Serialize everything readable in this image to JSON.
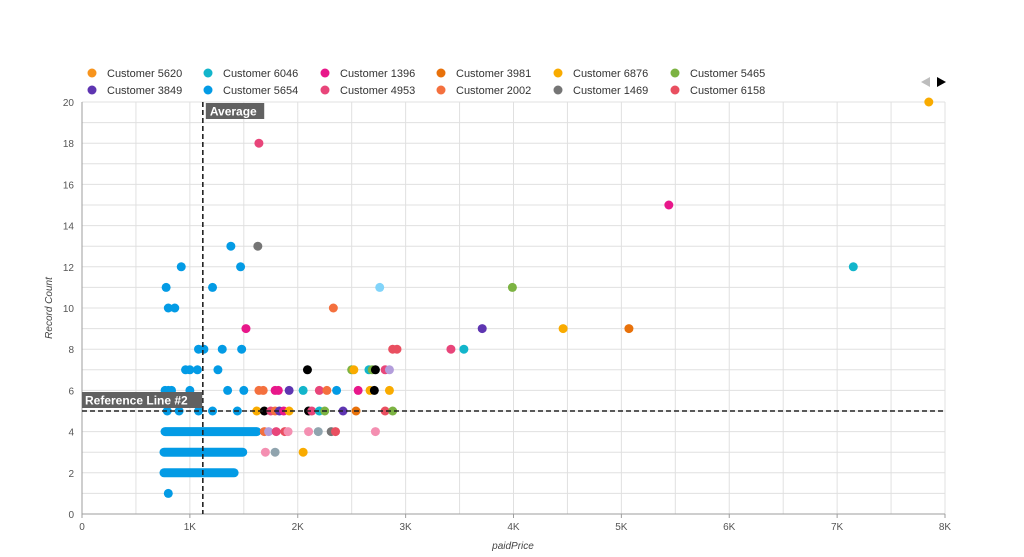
{
  "chart_data": {
    "type": "scatter",
    "xlabel": "paidPrice",
    "ylabel": "Record Count",
    "xlim": [
      0,
      8000
    ],
    "ylim": [
      0,
      20
    ],
    "x_ticks": [
      {
        "value": 0,
        "label": "0"
      },
      {
        "value": 1000,
        "label": "1K"
      },
      {
        "value": 2000,
        "label": "2K"
      },
      {
        "value": 3000,
        "label": "3K"
      },
      {
        "value": 4000,
        "label": "4K"
      },
      {
        "value": 5000,
        "label": "5K"
      },
      {
        "value": 6000,
        "label": "6K"
      },
      {
        "value": 7000,
        "label": "7K"
      },
      {
        "value": 8000,
        "label": "8K"
      }
    ],
    "y_ticks": [
      {
        "value": 0,
        "label": "0"
      },
      {
        "value": 2,
        "label": "2"
      },
      {
        "value": 4,
        "label": "4"
      },
      {
        "value": 6,
        "label": "6"
      },
      {
        "value": 8,
        "label": "8"
      },
      {
        "value": 10,
        "label": "10"
      },
      {
        "value": 12,
        "label": "12"
      },
      {
        "value": 14,
        "label": "14"
      },
      {
        "value": 16,
        "label": "16"
      },
      {
        "value": 18,
        "label": "18"
      },
      {
        "value": 20,
        "label": "20"
      }
    ],
    "grid": true,
    "legend_position": "top",
    "legend": [
      {
        "name": "Customer 5620",
        "color": "#f7941d"
      },
      {
        "name": "Customer 6046",
        "color": "#12b5cb"
      },
      {
        "name": "Customer 1396",
        "color": "#e8178a"
      },
      {
        "name": "Customer 3981",
        "color": "#e8710a"
      },
      {
        "name": "Customer 6876",
        "color": "#f9ab00"
      },
      {
        "name": "Customer 5465",
        "color": "#7cb342"
      },
      {
        "name": "Customer 3849",
        "color": "#5e35b1"
      },
      {
        "name": "Customer 5654",
        "color": "#039be5"
      },
      {
        "name": "Customer 4953",
        "color": "#e8457a"
      },
      {
        "name": "Customer 2002",
        "color": "#f4703e"
      },
      {
        "name": "Customer 1469",
        "color": "#757575"
      },
      {
        "name": "Customer 6158",
        "color": "#e94f60"
      }
    ],
    "reference_lines": [
      {
        "label": "Average",
        "axis": "x",
        "value": 1120
      },
      {
        "label": "Reference Line #2",
        "axis": "y",
        "value": 5
      }
    ],
    "points": [
      {
        "x": 7850,
        "y": 20,
        "color": "#f9ab00"
      },
      {
        "x": 1640,
        "y": 18,
        "color": "#e8457a"
      },
      {
        "x": 5440,
        "y": 15,
        "color": "#e8178a"
      },
      {
        "x": 1380,
        "y": 13,
        "color": "#039be5"
      },
      {
        "x": 1630,
        "y": 13,
        "color": "#757575"
      },
      {
        "x": 920,
        "y": 12,
        "color": "#039be5"
      },
      {
        "x": 1470,
        "y": 12,
        "color": "#039be5"
      },
      {
        "x": 7150,
        "y": 12,
        "color": "#12b5cb"
      },
      {
        "x": 780,
        "y": 11,
        "color": "#039be5"
      },
      {
        "x": 1210,
        "y": 11,
        "color": "#039be5"
      },
      {
        "x": 2760,
        "y": 11,
        "color": "#81d4fa"
      },
      {
        "x": 3990,
        "y": 11,
        "color": "#7cb342"
      },
      {
        "x": 800,
        "y": 10,
        "color": "#039be5"
      },
      {
        "x": 860,
        "y": 10,
        "color": "#039be5"
      },
      {
        "x": 2330,
        "y": 10,
        "color": "#f4703e"
      },
      {
        "x": 1520,
        "y": 9,
        "color": "#e8178a"
      },
      {
        "x": 3710,
        "y": 9,
        "color": "#5e35b1"
      },
      {
        "x": 4460,
        "y": 9,
        "color": "#f9ab00"
      },
      {
        "x": 5070,
        "y": 9,
        "color": "#e8710a"
      },
      {
        "x": 1080,
        "y": 8,
        "color": "#039be5"
      },
      {
        "x": 1130,
        "y": 8,
        "color": "#039be5"
      },
      {
        "x": 1300,
        "y": 8,
        "color": "#039be5"
      },
      {
        "x": 1480,
        "y": 8,
        "color": "#039be5"
      },
      {
        "x": 2880,
        "y": 8,
        "color": "#e94f60"
      },
      {
        "x": 2920,
        "y": 8,
        "color": "#e94f60"
      },
      {
        "x": 3420,
        "y": 8,
        "color": "#e8457a"
      },
      {
        "x": 3540,
        "y": 8,
        "color": "#12b5cb"
      },
      {
        "x": 960,
        "y": 7,
        "color": "#039be5"
      },
      {
        "x": 1000,
        "y": 7,
        "color": "#039be5"
      },
      {
        "x": 1070,
        "y": 7,
        "color": "#039be5"
      },
      {
        "x": 1260,
        "y": 7,
        "color": "#039be5"
      },
      {
        "x": 2090,
        "y": 7,
        "color": "#000000"
      },
      {
        "x": 2500,
        "y": 7,
        "color": "#7cb342"
      },
      {
        "x": 2520,
        "y": 7,
        "color": "#f9ab00"
      },
      {
        "x": 2660,
        "y": 7,
        "color": "#12b5cb"
      },
      {
        "x": 2690,
        "y": 7,
        "color": "#7cb342"
      },
      {
        "x": 2720,
        "y": 7,
        "color": "#000000"
      },
      {
        "x": 2810,
        "y": 7,
        "color": "#e8457a"
      },
      {
        "x": 2850,
        "y": 7,
        "color": "#b39ddb"
      },
      {
        "x": 770,
        "y": 6,
        "color": "#039be5"
      },
      {
        "x": 800,
        "y": 6,
        "color": "#039be5"
      },
      {
        "x": 830,
        "y": 6,
        "color": "#039be5"
      },
      {
        "x": 1000,
        "y": 6,
        "color": "#039be5"
      },
      {
        "x": 1350,
        "y": 6,
        "color": "#039be5"
      },
      {
        "x": 1500,
        "y": 6,
        "color": "#039be5"
      },
      {
        "x": 1640,
        "y": 6,
        "color": "#f4703e"
      },
      {
        "x": 1680,
        "y": 6,
        "color": "#f4703e"
      },
      {
        "x": 1790,
        "y": 6,
        "color": "#e8178a"
      },
      {
        "x": 1820,
        "y": 6,
        "color": "#e8178a"
      },
      {
        "x": 1920,
        "y": 6,
        "color": "#5e35b1"
      },
      {
        "x": 2050,
        "y": 6,
        "color": "#12b5cb"
      },
      {
        "x": 2200,
        "y": 6,
        "color": "#e8457a"
      },
      {
        "x": 2270,
        "y": 6,
        "color": "#f4703e"
      },
      {
        "x": 2360,
        "y": 6,
        "color": "#039be5"
      },
      {
        "x": 2560,
        "y": 6,
        "color": "#e8178a"
      },
      {
        "x": 2670,
        "y": 6,
        "color": "#f9ab00"
      },
      {
        "x": 2710,
        "y": 6,
        "color": "#000000"
      },
      {
        "x": 2850,
        "y": 6,
        "color": "#f9ab00"
      },
      {
        "x": 790,
        "y": 5,
        "color": "#039be5"
      },
      {
        "x": 900,
        "y": 5,
        "color": "#039be5"
      },
      {
        "x": 1080,
        "y": 5,
        "color": "#039be5"
      },
      {
        "x": 1210,
        "y": 5,
        "color": "#039be5"
      },
      {
        "x": 1440,
        "y": 5,
        "color": "#039be5"
      },
      {
        "x": 1620,
        "y": 5,
        "color": "#f9ab00"
      },
      {
        "x": 1690,
        "y": 5,
        "color": "#000000"
      },
      {
        "x": 1750,
        "y": 5,
        "color": "#e8457a"
      },
      {
        "x": 1790,
        "y": 5,
        "color": "#f4703e"
      },
      {
        "x": 1830,
        "y": 5,
        "color": "#5e35b1"
      },
      {
        "x": 1870,
        "y": 5,
        "color": "#e8178a"
      },
      {
        "x": 1920,
        "y": 5,
        "color": "#f9ab00"
      },
      {
        "x": 2100,
        "y": 5,
        "color": "#000000"
      },
      {
        "x": 2130,
        "y": 5,
        "color": "#e8457a"
      },
      {
        "x": 2200,
        "y": 5,
        "color": "#12b5cb"
      },
      {
        "x": 2250,
        "y": 5,
        "color": "#7cb342"
      },
      {
        "x": 2420,
        "y": 5,
        "color": "#5e35b1"
      },
      {
        "x": 2540,
        "y": 5,
        "color": "#e8710a"
      },
      {
        "x": 2810,
        "y": 5,
        "color": "#e94f60"
      },
      {
        "x": 2880,
        "y": 5,
        "color": "#7cb342"
      },
      {
        "x": 1690,
        "y": 4,
        "color": "#f4703e"
      },
      {
        "x": 1730,
        "y": 4,
        "color": "#b39ddb"
      },
      {
        "x": 1800,
        "y": 4,
        "color": "#e8457a"
      },
      {
        "x": 1880,
        "y": 4,
        "color": "#e94f60"
      },
      {
        "x": 1910,
        "y": 4,
        "color": "#f48fb1"
      },
      {
        "x": 2100,
        "y": 4,
        "color": "#f48fb1"
      },
      {
        "x": 2190,
        "y": 4,
        "color": "#90a4ae"
      },
      {
        "x": 2310,
        "y": 4,
        "color": "#757575"
      },
      {
        "x": 2350,
        "y": 4,
        "color": "#e94f60"
      },
      {
        "x": 2720,
        "y": 4,
        "color": "#f48fb1"
      },
      {
        "x": 1700,
        "y": 3,
        "color": "#f48fb1"
      },
      {
        "x": 1790,
        "y": 3,
        "color": "#90a4ae"
      },
      {
        "x": 2050,
        "y": 3,
        "color": "#f9ab00"
      },
      {
        "x": 800,
        "y": 1,
        "color": "#039be5"
      }
    ],
    "dense_bands": [
      {
        "y": 4,
        "x_start": 770,
        "x_end": 1620,
        "color": "#039be5"
      },
      {
        "y": 3,
        "x_start": 760,
        "x_end": 1490,
        "color": "#039be5"
      },
      {
        "y": 2,
        "x_start": 760,
        "x_end": 1410,
        "color": "#039be5"
      }
    ]
  }
}
